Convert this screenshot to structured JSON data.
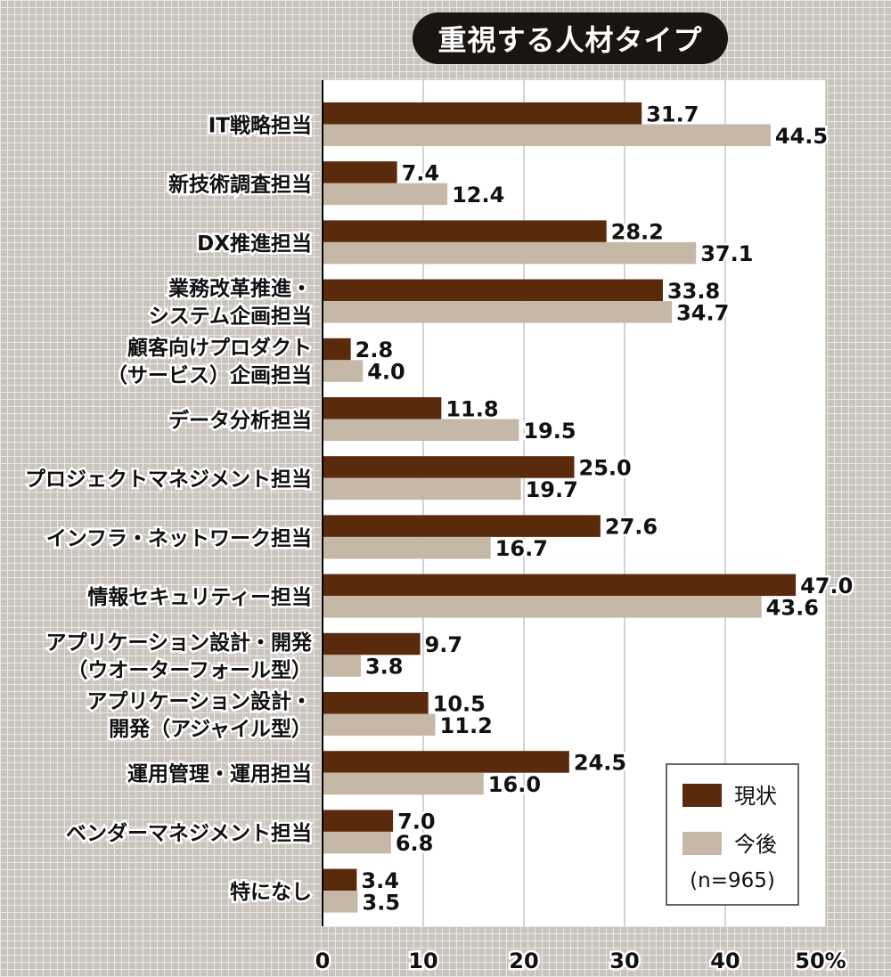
{
  "chart_data": {
    "type": "bar",
    "title": "重視する人材タイプ",
    "orientation": "horizontal",
    "categories": [
      [
        "IT戦略担当"
      ],
      [
        "新技術調査担当"
      ],
      [
        "DX推進担当"
      ],
      [
        "業務改革推進・",
        "システム企画担当"
      ],
      [
        "顧客向けプロダクト",
        "（サービス）企画担当"
      ],
      [
        "データ分析担当"
      ],
      [
        "プロジェクトマネジメント担当"
      ],
      [
        "インフラ・ネットワーク担当"
      ],
      [
        "情報セキュリティー担当"
      ],
      [
        "アプリケーション設計・開発",
        "（ウオーターフォール型）"
      ],
      [
        "アプリケーション設計・",
        "開発（アジャイル型）"
      ],
      [
        "運用管理・運用担当"
      ],
      [
        "ベンダーマネジメント担当"
      ],
      [
        "特になし"
      ]
    ],
    "series": [
      {
        "name": "現状",
        "color": "#5a2a0c",
        "values": [
          31.7,
          7.4,
          28.2,
          33.8,
          2.8,
          11.8,
          25.0,
          27.6,
          47.0,
          9.7,
          10.5,
          24.5,
          7.0,
          3.4
        ],
        "labels": [
          "31.7",
          "7.4",
          "28.2",
          "33.8",
          "2.8",
          "11.8",
          "25.0",
          "27.6",
          "47.0",
          "9.7",
          "10.5",
          "24.5",
          "7.0",
          "3.4"
        ]
      },
      {
        "name": "今後",
        "color": "#c6b8a6",
        "values": [
          44.5,
          12.4,
          37.1,
          34.7,
          4.0,
          19.5,
          19.7,
          16.7,
          43.6,
          3.8,
          11.2,
          16.0,
          6.8,
          3.5
        ],
        "labels": [
          "44.5",
          "12.4",
          "37.1",
          "34.7",
          "4.0",
          "19.5",
          "19.7",
          "16.7",
          "43.6",
          "3.8",
          "11.2",
          "16.0",
          "6.8",
          "3.5"
        ]
      }
    ],
    "xlim": [
      0,
      50
    ],
    "xticks": [
      "0",
      "10",
      "20",
      "30",
      "40",
      "50%"
    ],
    "gridlines": true,
    "legend_position": "bottom-right",
    "note": "(n=965)"
  }
}
